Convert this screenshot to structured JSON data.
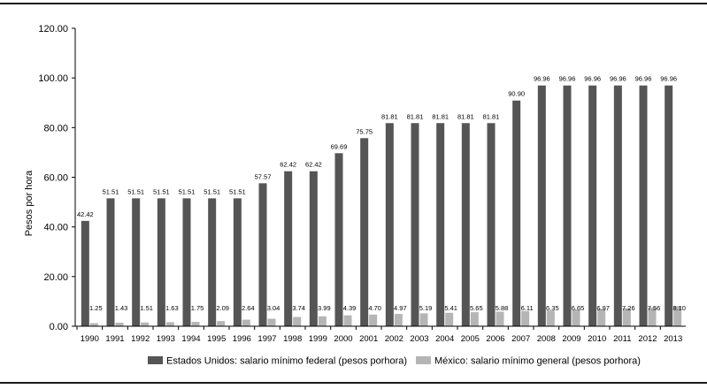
{
  "chart_data": {
    "type": "bar",
    "title": "",
    "xlabel": "",
    "ylabel": "Pesos por hora",
    "ylim": [
      0,
      120
    ],
    "yticks": [
      "0.00",
      "20.00",
      "40.00",
      "60.00",
      "80.00",
      "100.00",
      "120.00"
    ],
    "ytick_values": [
      0,
      20,
      40,
      60,
      80,
      100,
      120
    ],
    "grid": false,
    "legend_position": "bottom",
    "categories": [
      "1990",
      "1991",
      "1992",
      "1993",
      "1994",
      "1995",
      "1996",
      "1997",
      "1998",
      "1999",
      "2000",
      "2001",
      "2002",
      "2003",
      "2004",
      "2005",
      "2006",
      "2007",
      "2008",
      "2009",
      "2010",
      "2011",
      "2012",
      "2013"
    ],
    "series": [
      {
        "name": "Estados Unidos: salario mínimo federal (pesos porhora)",
        "color": "#555555",
        "values": [
          42.42,
          51.51,
          51.51,
          51.51,
          51.51,
          51.51,
          51.51,
          57.57,
          62.42,
          62.42,
          69.69,
          75.75,
          81.81,
          81.81,
          81.81,
          81.81,
          81.81,
          90.9,
          96.96,
          96.96,
          96.96,
          96.96,
          96.96,
          96.96
        ],
        "labels": [
          "42.42",
          "51.51",
          "51.51",
          "51.51",
          "51.51",
          "51.51",
          "51.51",
          "57.57",
          "62.42",
          "62.42",
          "69.69",
          "75.75",
          "81.81",
          "81.81",
          "81.81",
          "81.81",
          "81.81",
          "90.90",
          "96.96",
          "96.96",
          "96.96",
          "96.96",
          "96.96",
          "96.96"
        ]
      },
      {
        "name": "México: salario mínimo general (pesos porhora)",
        "color": "#b5b5b5",
        "values": [
          1.25,
          1.43,
          1.51,
          1.63,
          1.75,
          2.09,
          2.64,
          3.04,
          3.74,
          3.99,
          4.39,
          4.7,
          4.97,
          5.19,
          5.41,
          5.65,
          5.88,
          6.11,
          6.35,
          6.65,
          6.97,
          7.26,
          7.56,
          8.1
        ],
        "labels": [
          "1.25",
          "1.43",
          "1.51",
          "1.63",
          "1.75",
          "2.09",
          "2.64",
          "3.04",
          "3.74",
          "3.99",
          "4.39",
          "4.70",
          "4.97",
          "5.19",
          "5.41",
          "5.65",
          "5.88",
          "6.11",
          "6.35",
          "6.65",
          "6.97",
          "7.26",
          "7.56",
          "8.10"
        ]
      }
    ]
  }
}
